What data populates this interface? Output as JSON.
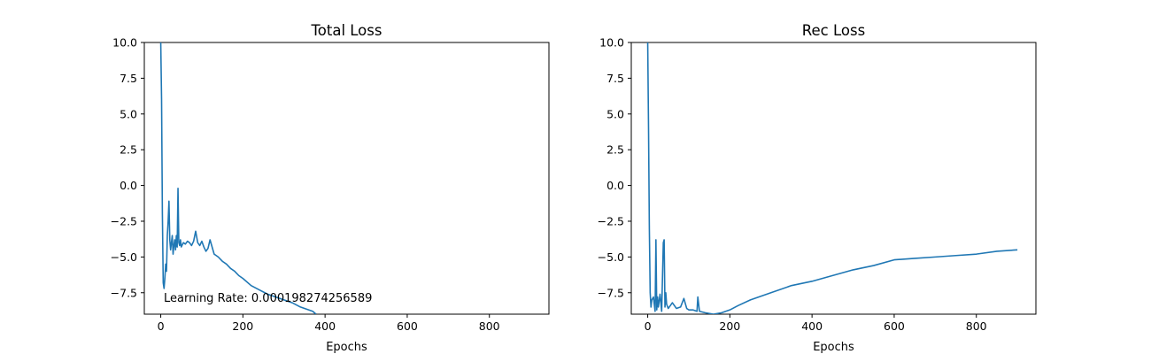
{
  "chart_data": [
    {
      "type": "line",
      "title": "Total Loss",
      "xlabel": "Epochs",
      "ylabel": "",
      "xlim": [
        -40,
        945
      ],
      "ylim": [
        -9.0,
        10.0
      ],
      "xticks": [
        0,
        200,
        400,
        600,
        800
      ],
      "yticks": [
        -7.5,
        -5.0,
        -2.5,
        0.0,
        2.5,
        5.0,
        7.5,
        10.0
      ],
      "xtick_labels": [
        "0",
        "200",
        "400",
        "600",
        "800"
      ],
      "ytick_labels": [
        "−7.5",
        "−5.0",
        "−2.5",
        "0.0",
        "2.5",
        "5.0",
        "7.5",
        "10.0"
      ],
      "grid": false,
      "annotation": "Learning Rate: 0.000198274256589",
      "color": "#1f77b4",
      "series": [
        {
          "x": [
            0,
            2,
            4,
            6,
            8,
            10,
            12,
            14,
            16,
            18,
            20,
            22,
            24,
            26,
            28,
            30,
            32,
            34,
            36,
            38,
            40,
            42,
            44,
            46,
            48,
            50,
            55,
            60,
            65,
            70,
            75,
            80,
            85,
            90,
            95,
            100,
            105,
            110,
            115,
            120,
            130,
            140,
            150,
            160,
            170,
            180,
            190,
            200,
            220,
            240,
            260,
            280,
            300,
            320,
            340,
            360,
            370,
            378
          ],
          "y": [
            10.0,
            6.0,
            -2.0,
            -6.8,
            -7.2,
            -6.5,
            -5.5,
            -6.0,
            -3.5,
            -2.5,
            -1.1,
            -3.8,
            -4.5,
            -4.0,
            -3.5,
            -4.8,
            -4.2,
            -3.8,
            -4.5,
            -3.5,
            -4.3,
            -0.2,
            -4.0,
            -4.2,
            -3.8,
            -4.3,
            -4.0,
            -4.1,
            -3.9,
            -4.0,
            -4.2,
            -3.9,
            -3.2,
            -4.0,
            -4.2,
            -3.9,
            -4.3,
            -4.6,
            -4.4,
            -3.8,
            -4.8,
            -5.0,
            -5.3,
            -5.5,
            -5.8,
            -6.0,
            -6.3,
            -6.5,
            -7.0,
            -7.3,
            -7.6,
            -7.8,
            -8.0,
            -8.2,
            -8.5,
            -8.7,
            -8.8,
            -9.0
          ]
        }
      ]
    },
    {
      "type": "line",
      "title": "Rec Loss",
      "xlabel": "Epochs",
      "ylabel": "",
      "xlim": [
        -40,
        945
      ],
      "ylim": [
        -9.0,
        10.0
      ],
      "xticks": [
        0,
        200,
        400,
        600,
        800
      ],
      "yticks": [
        -7.5,
        -5.0,
        -2.5,
        0.0,
        2.5,
        5.0,
        7.5,
        10.0
      ],
      "xtick_labels": [
        "0",
        "200",
        "400",
        "600",
        "800"
      ],
      "ytick_labels": [
        "−7.5",
        "−5.0",
        "−2.5",
        "0.0",
        "2.5",
        "5.0",
        "7.5",
        "10.0"
      ],
      "grid": false,
      "color": "#1f77b4",
      "series": [
        {
          "x": [
            0,
            2,
            4,
            6,
            8,
            10,
            14,
            18,
            20,
            22,
            24,
            26,
            30,
            34,
            38,
            40,
            42,
            44,
            46,
            50,
            60,
            70,
            80,
            88,
            95,
            100,
            110,
            120,
            122,
            126,
            140,
            160,
            180,
            200,
            220,
            250,
            300,
            350,
            400,
            450,
            500,
            550,
            600,
            650,
            700,
            750,
            800,
            850,
            900
          ],
          "y": [
            10.0,
            4.0,
            -3.0,
            -7.5,
            -8.5,
            -8.0,
            -7.8,
            -8.8,
            -3.8,
            -8.7,
            -7.8,
            -8.5,
            -7.6,
            -8.8,
            -4.0,
            -3.8,
            -8.5,
            -7.5,
            -8.3,
            -8.6,
            -8.2,
            -8.6,
            -8.5,
            -7.9,
            -8.6,
            -8.7,
            -8.7,
            -8.8,
            -7.8,
            -8.8,
            -8.9,
            -9.0,
            -8.9,
            -8.7,
            -8.4,
            -8.0,
            -7.5,
            -7.0,
            -6.7,
            -6.3,
            -5.9,
            -5.6,
            -5.2,
            -5.1,
            -5.0,
            -4.9,
            -4.8,
            -4.6,
            -4.5
          ]
        }
      ]
    }
  ]
}
